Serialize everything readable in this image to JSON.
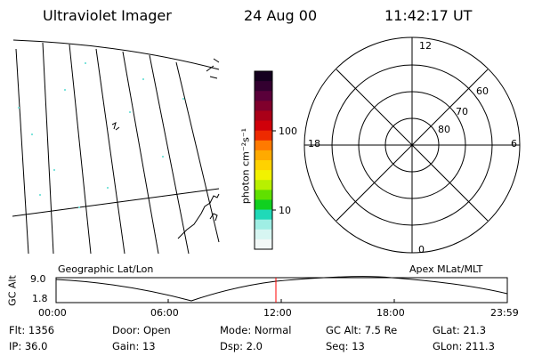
{
  "header": {
    "instrument": "Ultraviolet Imager",
    "date": "24 Aug 00",
    "time": "11:42:17 UT"
  },
  "colorbar": {
    "unit_label": "photon cm⁻²s⁻¹",
    "ticks": [
      "100",
      "10"
    ],
    "colors": [
      "#15001f",
      "#330030",
      "#5a003a",
      "#80002c",
      "#aa0018",
      "#d0000a",
      "#ee2a00",
      "#ff7a00",
      "#ffaa00",
      "#ffd200",
      "#f2f200",
      "#b8f000",
      "#60e000",
      "#10d020",
      "#20d9b8",
      "#9feee4",
      "#d7f6f2",
      "#f2f8f7"
    ]
  },
  "polar_plot": {
    "labels": {
      "top": "12",
      "bottom": "0",
      "left": "18",
      "right": "6"
    },
    "lat_labels": [
      "80",
      "70",
      "60"
    ]
  },
  "timeline": {
    "axis_label": "GC Alt",
    "y_ticks": [
      "9.0",
      "1.8"
    ],
    "left_caption": "Geographic Lat/Lon",
    "right_caption": "Apex MLat/MLT",
    "x_ticks": [
      "00:00",
      "06:00",
      "12:00",
      "18:00",
      "23:59"
    ],
    "marker_color": "#ff0000"
  },
  "info": {
    "flt": "Flt:  1356",
    "ip": "IP:  36.0",
    "door": "Door:  Open",
    "gain": "Gain:  13",
    "mode": "Mode:  Normal",
    "dsp": "Dsp:      2.0",
    "gc_alt": "GC Alt:  7.5 Re",
    "seq": "Seq:  13",
    "glat": "GLat:   21.3",
    "glon": "GLon:  211.3"
  }
}
